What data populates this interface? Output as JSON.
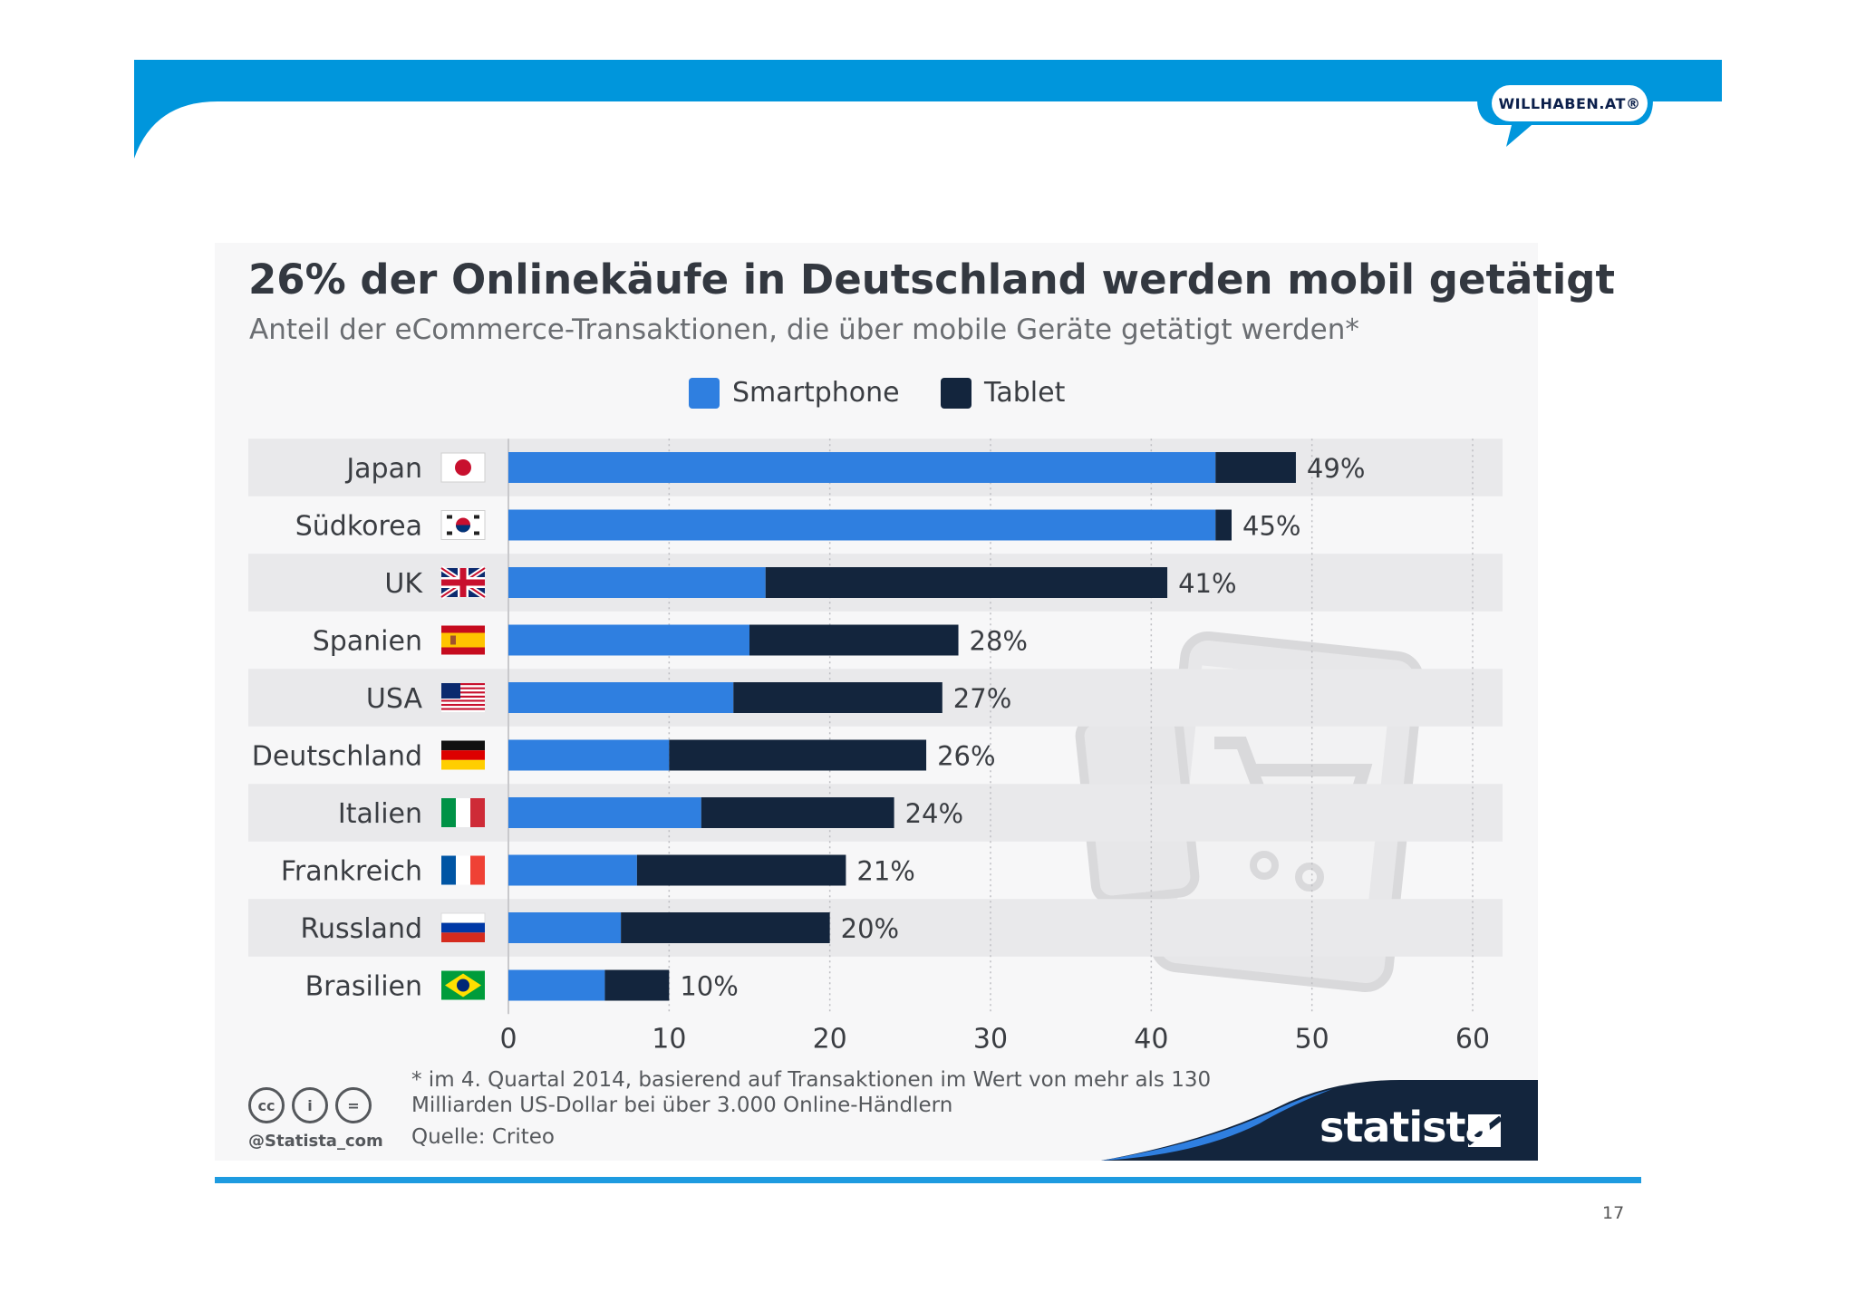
{
  "slide": {
    "logo_text": "WILLHABEN.AT®",
    "page_number": "17",
    "colors": {
      "header_blue": "#0096dc",
      "bottom_line": "#1e9be0"
    }
  },
  "chart_data": {
    "type": "bar",
    "orientation": "horizontal",
    "stacked": true,
    "title": "26% der Onlinekäufe in Deutschland werden mobil getätigt",
    "subtitle": "Anteil der eCommerce-Transaktionen, die über mobile Geräte getätigt werden*",
    "categories": [
      "Japan",
      "Südkorea",
      "UK",
      "Spanien",
      "USA",
      "Deutschland",
      "Italien",
      "Frankreich",
      "Russland",
      "Brasilien"
    ],
    "series": [
      {
        "name": "Smartphone",
        "color": "#2f7fe0",
        "values": [
          44,
          44,
          16,
          15,
          14,
          10,
          12,
          8,
          7,
          6
        ]
      },
      {
        "name": "Tablet",
        "color": "#13253d",
        "values": [
          5,
          1,
          25,
          13,
          13,
          16,
          12,
          13,
          13,
          4
        ]
      }
    ],
    "totals": [
      49,
      45,
      41,
      28,
      27,
      26,
      24,
      21,
      20,
      10
    ],
    "total_labels": [
      "49%",
      "45%",
      "41%",
      "28%",
      "27%",
      "26%",
      "24%",
      "21%",
      "20%",
      "10%"
    ],
    "flags": [
      "flag-japan-icon",
      "flag-south-korea-icon",
      "flag-uk-icon",
      "flag-spain-icon",
      "flag-usa-icon",
      "flag-germany-icon",
      "flag-italy-icon",
      "flag-france-icon",
      "flag-russia-icon",
      "flag-brazil-icon"
    ],
    "xlim": [
      0,
      60
    ],
    "xticks": [
      0,
      10,
      20,
      30,
      40,
      50,
      60
    ],
    "xtick_labels": [
      "0",
      "10",
      "20",
      "30",
      "40",
      "50",
      "60"
    ],
    "grid": true,
    "legend_position": "top-center",
    "footnote_line1": "* im 4. Quartal 2014, basierend auf Transaktionen im Wert von mehr als 130",
    "footnote_line2": "Milliarden US-Dollar bei über 3.000 Online-Händlern",
    "source": "Quelle: Criteo",
    "handle": "@Statista_com",
    "brand": "statista"
  }
}
